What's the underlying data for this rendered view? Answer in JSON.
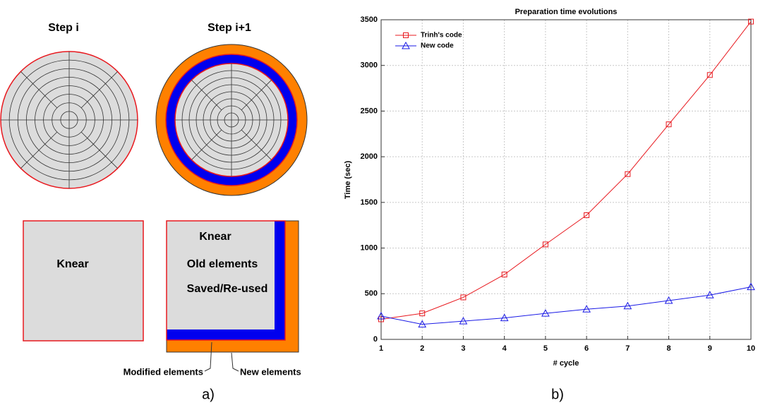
{
  "diagram": {
    "circle_labels": [
      "Step i",
      "Step i+1"
    ],
    "square_labels": [
      "Knear",
      "Knear",
      "Old elements",
      "Saved/Re-used"
    ],
    "callouts": [
      "Modified elements",
      "New elements"
    ],
    "panel_labels": [
      "a)",
      "b)"
    ]
  },
  "chart_data": {
    "type": "line",
    "title": "Preparation time evolutions",
    "x_label": "# cycle",
    "y_label": "Time (sec)",
    "x": [
      1,
      2,
      3,
      4,
      5,
      6,
      7,
      8,
      9,
      10
    ],
    "series": [
      {
        "name": "Trinh's code",
        "color": "#e8191f",
        "marker": "square",
        "values": [
          220,
          285,
          460,
          710,
          1040,
          1360,
          1810,
          2355,
          2895,
          3480
        ]
      },
      {
        "name": "New code",
        "color": "#1a1ae6",
        "marker": "triangle",
        "values": [
          255,
          165,
          200,
          235,
          285,
          330,
          365,
          425,
          485,
          575
        ]
      }
    ],
    "xlim": [
      1,
      10
    ],
    "xticks": [
      1,
      2,
      3,
      4,
      5,
      6,
      7,
      8,
      9,
      10
    ],
    "ylim": [
      0,
      3500
    ],
    "yticks": [
      0,
      500,
      1000,
      1500,
      2000,
      2500,
      3000,
      3500
    ],
    "grid": true,
    "legend": "upper-left"
  }
}
